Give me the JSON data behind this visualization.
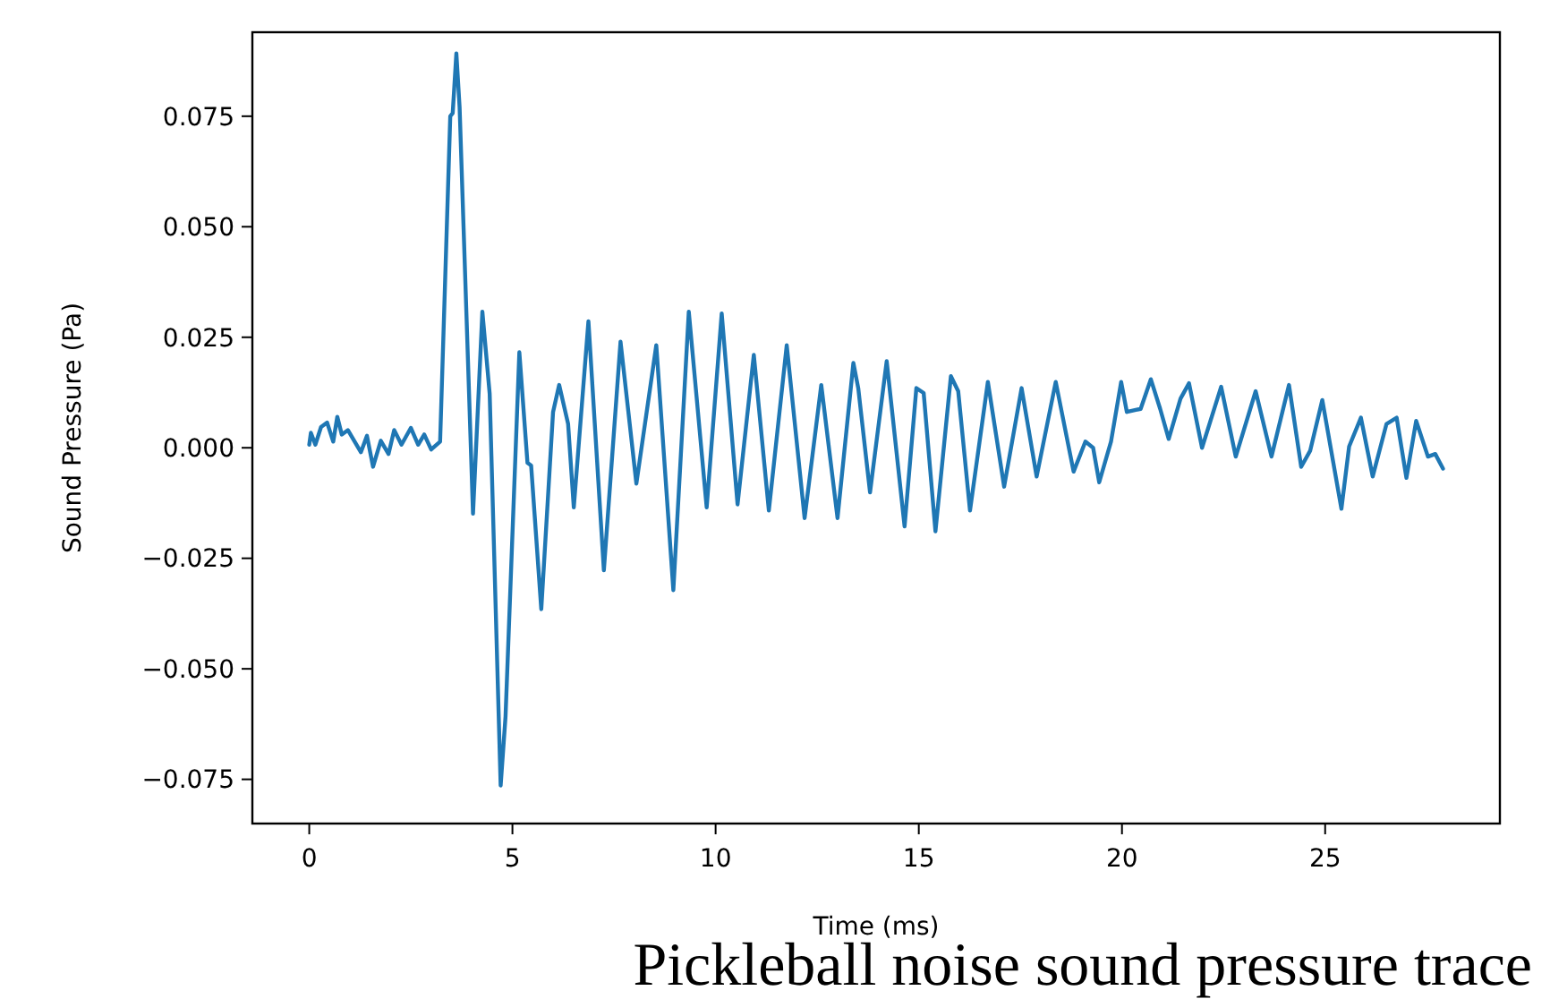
{
  "chart_data": {
    "type": "line",
    "xlabel": "Time (ms)",
    "ylabel": "Sound Pressure (Pa)",
    "annotations": [
      "Pickleball noise sound pressure trace"
    ],
    "xlim": [
      -1.4,
      29.3
    ],
    "ylim": [
      -0.085,
      0.094
    ],
    "xticks": [
      0,
      5,
      10,
      15,
      20,
      25
    ],
    "yticks": [
      {
        "value": -0.075,
        "label": "−0.075"
      },
      {
        "value": -0.05,
        "label": "−0.050"
      },
      {
        "value": -0.025,
        "label": "−0.025"
      },
      {
        "value": 0,
        "label": "0.000"
      },
      {
        "value": 0.025,
        "label": "0.025"
      },
      {
        "value": 0.05,
        "label": "0.050"
      },
      {
        "value": 0.075,
        "label": "0.075"
      }
    ],
    "grid": false,
    "marker": "none",
    "line_style": "solid",
    "series": [
      {
        "color": "#1f77b4",
        "x": [
          0,
          0.04,
          0.15,
          0.29,
          0.44,
          0.59,
          0.69,
          0.8,
          0.95,
          1.27,
          1.42,
          1.57,
          1.76,
          1.95,
          2.09,
          2.27,
          2.5,
          2.68,
          2.83,
          3.0,
          3.22,
          3.47,
          3.53,
          3.62,
          3.7,
          4.03,
          4.26,
          4.44,
          4.71,
          4.83,
          5.17,
          5.37,
          5.46,
          5.71,
          6.0,
          6.15,
          6.37,
          6.51,
          6.87,
          7.25,
          7.66,
          8.05,
          8.54,
          8.96,
          9.34,
          9.78,
          10.15,
          10.54,
          10.94,
          11.31,
          11.75,
          12.19,
          12.6,
          13.0,
          13.39,
          13.51,
          13.8,
          14.21,
          14.65,
          14.94,
          15.12,
          15.41,
          15.79,
          15.97,
          16.26,
          16.7,
          17.1,
          17.53,
          17.9,
          18.37,
          18.81,
          19.1,
          19.29,
          19.44,
          19.73,
          19.98,
          20.12,
          20.46,
          20.71,
          20.94,
          21.15,
          21.44,
          21.65,
          21.97,
          22.44,
          22.8,
          23.29,
          23.68,
          24.11,
          24.41,
          24.63,
          24.93,
          25.4,
          25.59,
          25.88,
          26.17,
          26.51,
          26.76,
          27.0,
          27.24,
          27.53,
          27.71,
          27.9
        ],
        "values": [
          0.0007,
          0.0034,
          0.0007,
          0.0047,
          0.0057,
          0.0014,
          0.007,
          0.003,
          0.004,
          -0.001,
          0.0027,
          -0.0043,
          0.0016,
          -0.0014,
          0.004,
          0.0007,
          0.0045,
          0.0007,
          0.003,
          -0.0004,
          0.0014,
          0.075,
          0.0757,
          0.0892,
          0.077,
          -0.0149,
          0.0308,
          0.0122,
          -0.0764,
          -0.0608,
          0.0216,
          -0.0034,
          -0.004,
          -0.0365,
          0.0081,
          0.0142,
          0.0054,
          -0.0135,
          0.0286,
          -0.0277,
          0.024,
          -0.0081,
          0.0232,
          -0.0322,
          0.0308,
          -0.0135,
          0.0304,
          -0.0128,
          0.021,
          -0.0142,
          0.0232,
          -0.0159,
          0.0142,
          -0.0159,
          0.0192,
          0.0135,
          -0.0101,
          0.0196,
          -0.0178,
          0.0135,
          0.0124,
          -0.0189,
          0.0162,
          0.0128,
          -0.0142,
          0.0149,
          -0.0088,
          0.0135,
          -0.0065,
          0.0149,
          -0.0054,
          0.0014,
          0,
          -0.0078,
          0.0014,
          0.0149,
          0.0081,
          0.0088,
          0.0155,
          0.0088,
          0.002,
          0.0111,
          0.0146,
          0,
          0.0138,
          -0.002,
          0.0128,
          -0.002,
          0.0142,
          -0.0043,
          -0.0007,
          0.0108,
          -0.0138,
          0.0003,
          0.0068,
          -0.0065,
          0.0054,
          0.0068,
          -0.0068,
          0.0061,
          -0.002,
          -0.0014,
          -0.0047
        ]
      }
    ]
  }
}
